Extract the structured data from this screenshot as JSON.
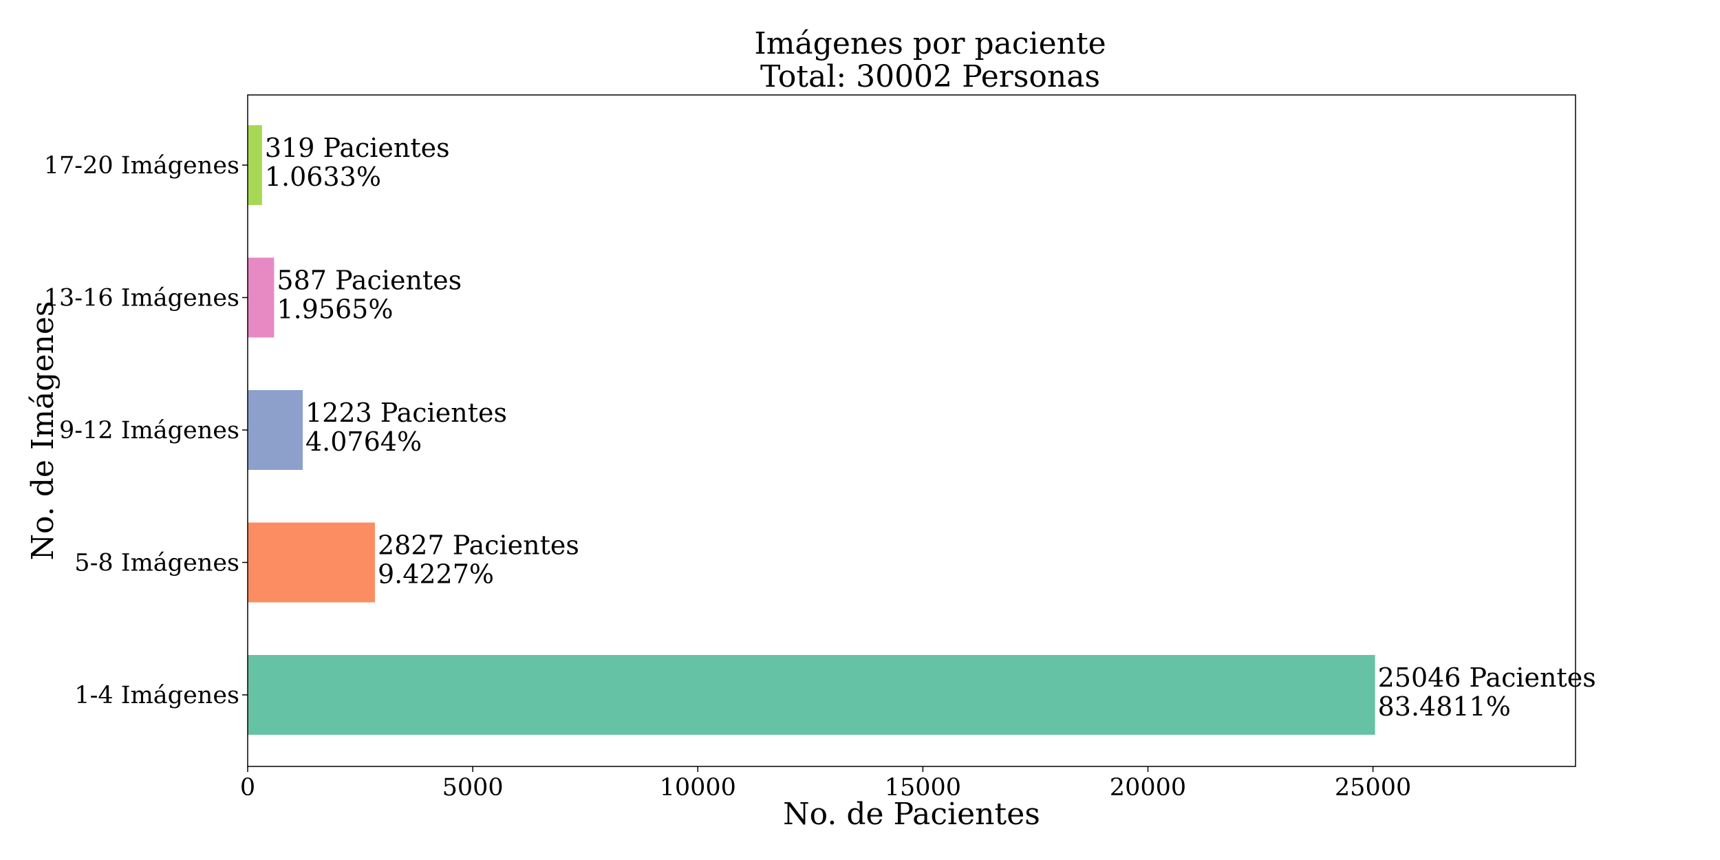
{
  "chart_data": {
    "type": "bar",
    "orientation": "horizontal",
    "title": "Imágenes por paciente",
    "subtitle": "Total: 30002 Personas",
    "xlabel": "No. de Pacientes",
    "ylabel": "No. de Imágenes",
    "categories": [
      "1-4 Imágenes",
      "5-8 Imágenes",
      "9-12 Imágenes",
      "13-16 Imágenes",
      "17-20 Imágenes"
    ],
    "values": [
      25046,
      2827,
      1223,
      587,
      319
    ],
    "value_labels": [
      "25046 Pacientes",
      "2827 Pacientes",
      "1223 Pacientes",
      "587 Pacientes",
      "319 Pacientes"
    ],
    "percent_labels": [
      "83.4811%",
      "9.4227%",
      "4.0764%",
      "1.9565%",
      "1.0633%"
    ],
    "colors": [
      "#66c2a5",
      "#fc8d62",
      "#8da0cb",
      "#e78ac3",
      "#a6d854"
    ],
    "xlim": [
      0,
      29500
    ],
    "xticks": [
      0,
      5000,
      10000,
      15000,
      20000,
      25000
    ],
    "xtick_labels": [
      "0",
      "5000",
      "10000",
      "15000",
      "20000",
      "25000"
    ],
    "grid": false,
    "legend": "none"
  }
}
